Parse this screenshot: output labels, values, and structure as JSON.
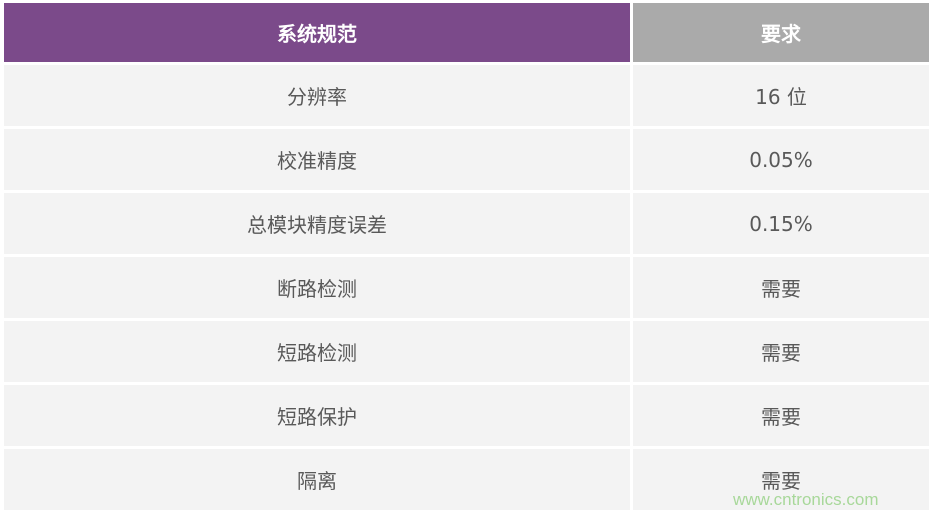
{
  "table": {
    "headers": [
      "系统规范",
      "要求"
    ],
    "rows": [
      [
        "分辨率",
        "16 位"
      ],
      [
        "校准精度",
        "0.05%"
      ],
      [
        "总模块精度误差",
        "0.15%"
      ],
      [
        "断路检测",
        "需要"
      ],
      [
        "短路检测",
        "需要"
      ],
      [
        "短路保护",
        "需要"
      ],
      [
        "隔离",
        "需要"
      ]
    ]
  },
  "colors": {
    "header_primary": "#7b4a8a",
    "header_secondary": "#aaaaaa",
    "cell_bg": "#f3f3f3"
  },
  "watermark": "www.cntronics.com"
}
